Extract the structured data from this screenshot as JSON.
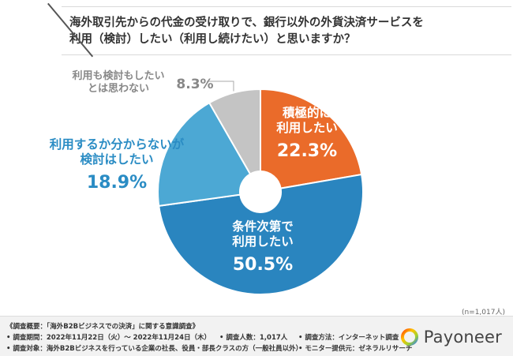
{
  "question": {
    "line1": "海外取引先からの代金の受け取りで、銀行以外の外貨決済サービスを",
    "line2": "利用（検討）したい（利用し続けたい）と思いますか？"
  },
  "chart_data": {
    "type": "pie",
    "donut": true,
    "start": "top",
    "direction": "clockwise",
    "slices": [
      {
        "label_lines": [
          "積極的に",
          "利用したい"
        ],
        "value": 22.3,
        "value_text": "22.3%",
        "color": "#ea6b2a",
        "label_color": "#ffffff"
      },
      {
        "label_lines": [
          "条件次第で",
          "利用したい"
        ],
        "value": 50.5,
        "value_text": "50.5%",
        "color": "#2a85bf",
        "label_color": "#ffffff"
      },
      {
        "label_lines": [
          "利用するか分からないが",
          "検討はしたい"
        ],
        "value": 18.9,
        "value_text": "18.9%",
        "color": "#4ca8d4",
        "label_color": "#2a8cc4"
      },
      {
        "label_lines": [
          "利用も検討もしたい",
          "とは思わない"
        ],
        "value": 8.3,
        "value_text": "8.3%",
        "color": "#c4c4c4",
        "label_color": "#888888"
      }
    ]
  },
  "n_note": "(n=1,017人)",
  "footer": {
    "overview": "《調査概要：「海外B2Bビジネスでの決済」に関する意識調査》",
    "period": "• 調査期間：2022年11月22日（火）〜 2022年11月24日（木）",
    "count": "• 調査人数：1,017人",
    "method": "• 調査方法：インターネット調査",
    "target": "• 調査対象：海外B2Bビジネスを行っている企業の社長、役員・部長クラスの方（一般社員以外）",
    "provider": "• モニター提供元：ゼネラルリサーチ",
    "brand": "Payoneer"
  }
}
